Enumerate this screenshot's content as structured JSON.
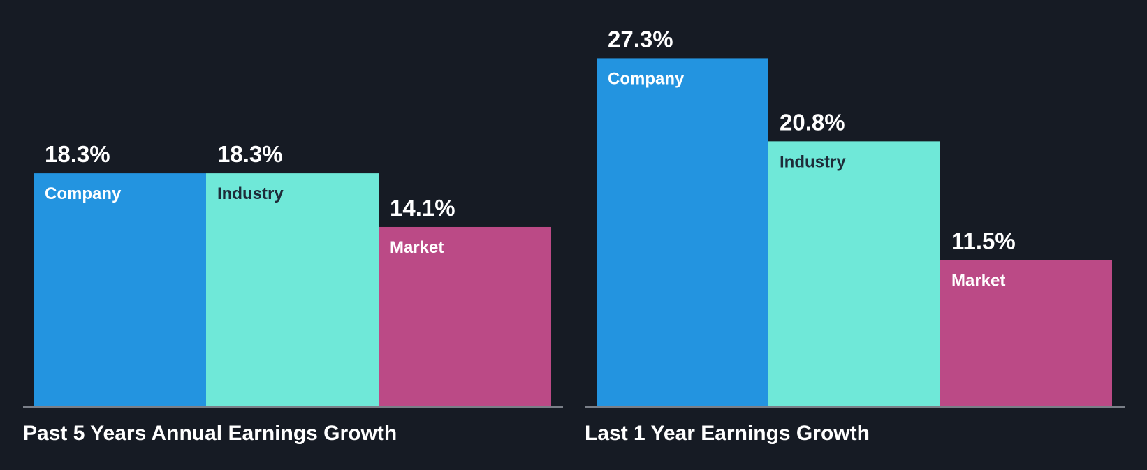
{
  "colors": {
    "background": "#161b24",
    "company": "#2394e0",
    "industry": "#6fe8d8",
    "market": "#bb4a86",
    "baseline": "#7a7f88",
    "value_text": "#ffffff"
  },
  "chart_data": [
    {
      "type": "bar",
      "title": "Past 5 Years Annual Earnings Growth",
      "categories": [
        "Company",
        "Industry",
        "Market"
      ],
      "values": [
        18.3,
        18.3,
        14.1
      ],
      "value_labels": [
        "18.3%",
        "18.3%",
        "14.1%"
      ],
      "xlabel": "",
      "ylabel": "",
      "grid": false
    },
    {
      "type": "bar",
      "title": "Last 1 Year Earnings Growth",
      "categories": [
        "Company",
        "Industry",
        "Market"
      ],
      "values": [
        27.3,
        20.8,
        11.5
      ],
      "value_labels": [
        "27.3%",
        "20.8%",
        "11.5%"
      ],
      "xlabel": "",
      "ylabel": "",
      "grid": false
    }
  ]
}
